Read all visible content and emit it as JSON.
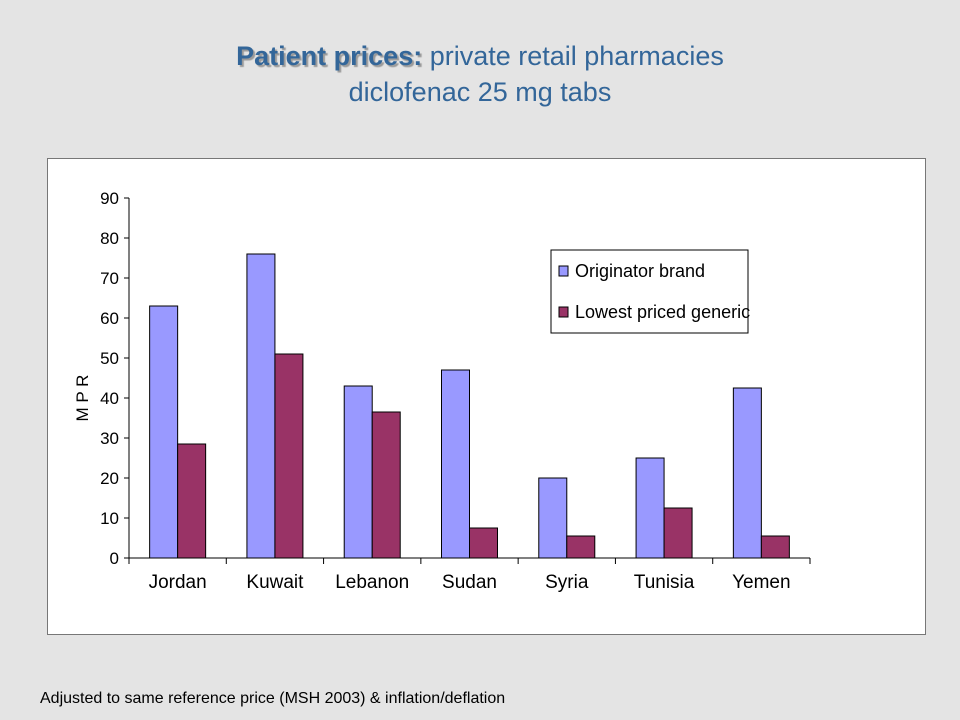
{
  "title": {
    "bold": "Patient prices:",
    "rest": " private retail pharmacies",
    "line2": "diclofenac 25 mg tabs"
  },
  "footnote": "Adjusted to same reference price (MSH 2003) & inflation/deflation",
  "chart_data": {
    "type": "bar",
    "categories": [
      "Jordan",
      "Kuwait",
      "Lebanon",
      "Sudan",
      "Syria",
      "Tunisia",
      "Yemen"
    ],
    "series": [
      {
        "name": "Originator brand",
        "values": [
          63,
          76,
          43,
          47,
          20,
          25,
          42.5
        ],
        "color": "#9999ff"
      },
      {
        "name": "Lowest priced generic",
        "values": [
          28.5,
          51,
          36.5,
          7.5,
          5.5,
          12.5,
          5.5
        ],
        "color": "#993366"
      }
    ],
    "title": "",
    "xlabel": "",
    "ylabel": "M P R",
    "ylim": [
      0,
      90
    ],
    "yticks": [
      0,
      10,
      20,
      30,
      40,
      50,
      60,
      70,
      80,
      90
    ],
    "grid": false,
    "legend_position": "top-right"
  }
}
